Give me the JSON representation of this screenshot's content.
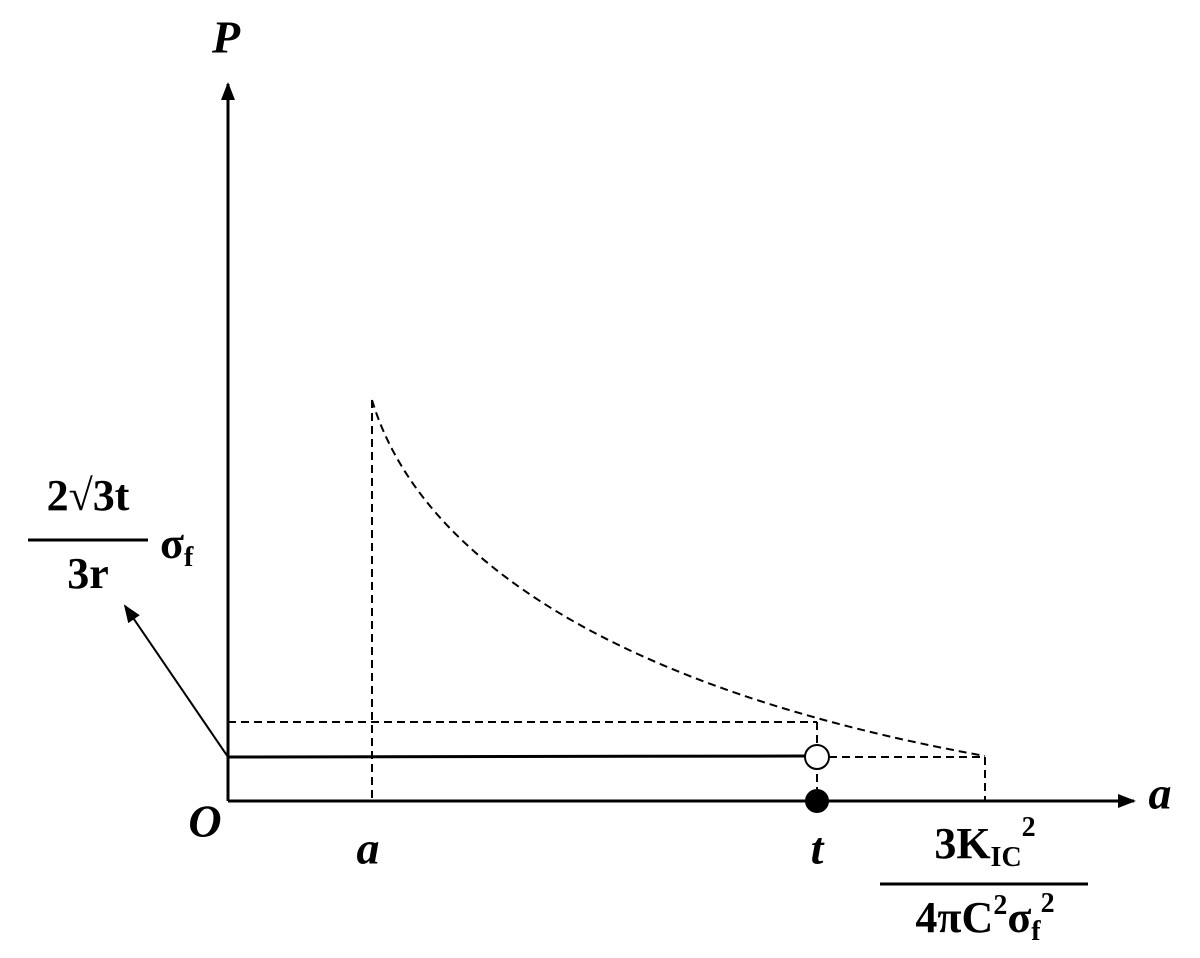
{
  "axes": {
    "y_label": "P",
    "x_label": "a",
    "origin": "O"
  },
  "ticks": {
    "a": "a",
    "t": "t"
  },
  "labels": {
    "y_level": {
      "numerator": "2√3t",
      "denominator": "3r",
      "factor": "σ",
      "factor_sub": "f"
    },
    "x_end": {
      "numerator": "3K",
      "numerator_sub": "IC",
      "numerator_sup": "2",
      "denominator": "4πC",
      "denominator_sup": "2",
      "denominator_sigma": "σ",
      "denominator_sub": "f",
      "denominator_sup2": "2"
    }
  }
}
